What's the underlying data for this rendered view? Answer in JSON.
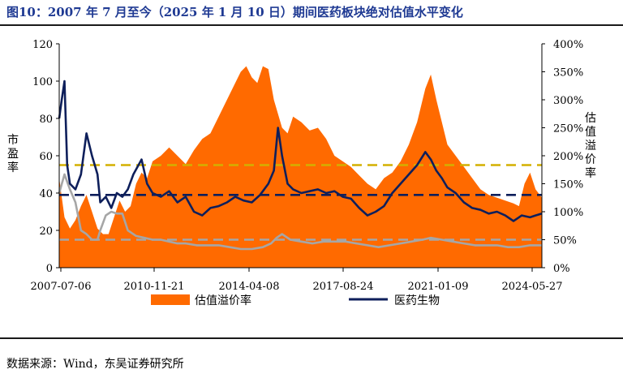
{
  "title": "图10：2007 年 7 月至今（2025 年 1 月 10 日）期间医药板块绝对估值水平变化",
  "source": "数据来源：Wind，东吴证券研究所",
  "colors": {
    "premium_area": "#ff6a00",
    "pe_line": "#0e1f5b",
    "gray_line": "#a6a6a6",
    "yellow_line": "#d4b000",
    "navy_dashed": "#0e1f5b",
    "gray_dashed": "#a6a6a6"
  },
  "chart_data": {
    "type": "area",
    "xlabel": "",
    "ylabel_left": "市盈率",
    "ylabel_right": "估值溢价率",
    "ylim_left": [
      0,
      120
    ],
    "ylim_right": [
      0,
      400
    ],
    "yticks_left": [
      "0",
      "20",
      "40",
      "60",
      "80",
      "100",
      "120"
    ],
    "yticks_right": [
      "0%",
      "50%",
      "100%",
      "150%",
      "200%",
      "250%",
      "300%",
      "350%",
      "400%"
    ],
    "xtick_labels": [
      "2007-07-06",
      "2010-11-21",
      "2014-04-08",
      "2017-08-24",
      "2021-01-09",
      "2024-05-27"
    ],
    "x_range": [
      2007.51,
      2025.03
    ],
    "legend": [
      "估值溢价率",
      "医药生物"
    ],
    "reference_lines": [
      {
        "series": "pe",
        "value": 55,
        "color": "yellow"
      },
      {
        "series": "pe",
        "value": 39,
        "color": "navy"
      },
      {
        "series": "premium",
        "value": 50,
        "color": "gray"
      }
    ],
    "series": [
      {
        "name": "估值溢价率",
        "axis": "right",
        "style": "area",
        "x": [
          2007.51,
          2007.7,
          2007.9,
          2008.1,
          2008.3,
          2008.5,
          2008.7,
          2008.9,
          2009.1,
          2009.3,
          2009.5,
          2009.7,
          2009.9,
          2010.1,
          2010.3,
          2010.5,
          2010.7,
          2010.9,
          2011.2,
          2011.5,
          2011.8,
          2012.1,
          2012.4,
          2012.7,
          2013.0,
          2013.3,
          2013.6,
          2013.9,
          2014.1,
          2014.3,
          2014.5,
          2014.7,
          2014.9,
          2015.1,
          2015.3,
          2015.6,
          2015.8,
          2016.0,
          2016.3,
          2016.6,
          2016.9,
          2017.2,
          2017.5,
          2017.8,
          2018.1,
          2018.4,
          2018.7,
          2019.0,
          2019.3,
          2019.6,
          2019.9,
          2020.2,
          2020.5,
          2020.8,
          2021.0,
          2021.2,
          2021.4,
          2021.6,
          2021.9,
          2022.2,
          2022.5,
          2022.8,
          2023.1,
          2023.4,
          2023.7,
          2024.0,
          2024.2,
          2024.4,
          2024.6,
          2024.8,
          2025.03
        ],
        "values": [
          160,
          90,
          70,
          85,
          110,
          130,
          100,
          70,
          60,
          60,
          90,
          120,
          100,
          110,
          150,
          170,
          160,
          190,
          200,
          215,
          200,
          185,
          210,
          230,
          240,
          270,
          300,
          330,
          350,
          360,
          340,
          330,
          360,
          355,
          300,
          250,
          240,
          270,
          260,
          245,
          250,
          230,
          200,
          190,
          180,
          165,
          150,
          140,
          160,
          170,
          190,
          220,
          260,
          320,
          345,
          300,
          260,
          220,
          200,
          180,
          160,
          140,
          130,
          125,
          120,
          115,
          110,
          150,
          170,
          140,
          125
        ]
      },
      {
        "name": "医药生物",
        "axis": "left",
        "style": "line",
        "x": [
          2007.51,
          2007.6,
          2007.7,
          2007.8,
          2007.9,
          2008.1,
          2008.3,
          2008.5,
          2008.7,
          2008.9,
          2009.0,
          2009.2,
          2009.4,
          2009.6,
          2009.8,
          2010.0,
          2010.2,
          2010.5,
          2010.7,
          2010.9,
          2011.2,
          2011.5,
          2011.8,
          2012.1,
          2012.4,
          2012.7,
          2013.0,
          2013.3,
          2013.6,
          2013.9,
          2014.2,
          2014.5,
          2014.8,
          2015.1,
          2015.3,
          2015.45,
          2015.6,
          2015.8,
          2016.0,
          2016.3,
          2016.6,
          2016.9,
          2017.2,
          2017.5,
          2017.8,
          2018.1,
          2018.4,
          2018.7,
          2019.0,
          2019.3,
          2019.6,
          2019.9,
          2020.2,
          2020.5,
          2020.8,
          2021.0,
          2021.2,
          2021.4,
          2021.6,
          2021.9,
          2022.2,
          2022.5,
          2022.8,
          2023.1,
          2023.4,
          2023.7,
          2024.0,
          2024.3,
          2024.6,
          2024.8,
          2025.03
        ],
        "values": [
          80,
          90,
          100,
          55,
          45,
          42,
          50,
          72,
          60,
          50,
          35,
          38,
          32,
          40,
          38,
          42,
          50,
          58,
          45,
          40,
          38,
          41,
          35,
          38,
          30,
          28,
          32,
          33,
          35,
          38,
          36,
          35,
          39,
          45,
          52,
          75,
          60,
          45,
          42,
          40,
          41,
          42,
          40,
          41,
          38,
          37,
          32,
          28,
          30,
          33,
          40,
          45,
          50,
          55,
          62,
          58,
          52,
          48,
          43,
          40,
          35,
          32,
          31,
          29,
          30,
          28,
          25,
          28,
          27,
          28,
          29
        ]
      },
      {
        "name": "",
        "axis": "left",
        "style": "line",
        "x": [
          2007.51,
          2007.7,
          2007.9,
          2008.1,
          2008.3,
          2008.5,
          2008.7,
          2008.9,
          2009.0,
          2009.2,
          2009.4,
          2009.6,
          2009.8,
          2010.0,
          2010.3,
          2010.6,
          2010.9,
          2011.2,
          2011.5,
          2011.8,
          2012.1,
          2012.5,
          2012.9,
          2013.3,
          2013.7,
          2014.1,
          2014.5,
          2014.9,
          2015.2,
          2015.4,
          2015.6,
          2015.9,
          2016.3,
          2016.7,
          2017.1,
          2017.5,
          2017.9,
          2018.3,
          2018.7,
          2019.1,
          2019.5,
          2019.9,
          2020.3,
          2020.7,
          2021.0,
          2021.4,
          2021.8,
          2022.2,
          2022.6,
          2023.0,
          2023.4,
          2023.8,
          2024.2,
          2024.6,
          2025.03
        ],
        "values": [
          40,
          50,
          42,
          35,
          20,
          18,
          15,
          15,
          20,
          28,
          30,
          29,
          29,
          20,
          17,
          16,
          15,
          15,
          14,
          13,
          13,
          12,
          12,
          12,
          11,
          10,
          10,
          11,
          13,
          16,
          18,
          15,
          14,
          13,
          14,
          14,
          14,
          13,
          12,
          11,
          12,
          13,
          14,
          15,
          16,
          15,
          14,
          13,
          12,
          12,
          12,
          11,
          11,
          12,
          12
        ]
      }
    ]
  }
}
